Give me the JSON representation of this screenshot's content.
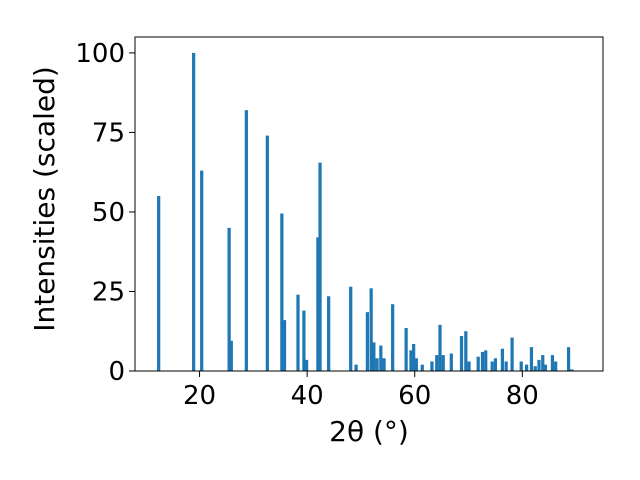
{
  "chart_data": {
    "type": "bar",
    "title": "",
    "xlabel": "2θ (°)",
    "ylabel": "Intensities (scaled)",
    "xlim": [
      8,
      95
    ],
    "ylim": [
      0,
      105
    ],
    "xticks": [
      20,
      40,
      60,
      80
    ],
    "yticks": [
      0,
      25,
      50,
      75,
      100
    ],
    "grid": false,
    "legend": "none",
    "bar_width": 0.6,
    "color": "#1f77b4",
    "x": [
      12.4,
      18.9,
      20.4,
      25.5,
      25.9,
      28.7,
      32.6,
      35.3,
      35.8,
      38.3,
      39.4,
      39.9,
      42.0,
      42.4,
      44.0,
      48.1,
      49.1,
      51.2,
      51.9,
      52.4,
      53.0,
      53.7,
      54.3,
      55.9,
      58.4,
      59.3,
      59.8,
      60.3,
      61.4,
      63.2,
      64.1,
      64.7,
      65.3,
      66.8,
      68.7,
      69.5,
      70.1,
      71.8,
      72.6,
      73.2,
      74.4,
      75.0,
      76.3,
      77.0,
      78.1,
      79.8,
      80.8,
      81.7,
      82.4,
      83.1,
      83.8,
      84.3,
      85.6,
      86.2,
      88.6,
      89.2
    ],
    "values": [
      55,
      100,
      63,
      45,
      9.5,
      82,
      74,
      49.5,
      16,
      24,
      19,
      3.5,
      42,
      65.5,
      23.5,
      26.5,
      2,
      18.5,
      26,
      9,
      4,
      8,
      4,
      21,
      13.5,
      6.5,
      8.5,
      4,
      2,
      3,
      5,
      14.5,
      5,
      5.5,
      11,
      12.5,
      3,
      4.5,
      6,
      6.5,
      3,
      4,
      7,
      3,
      10.5,
      3,
      2,
      7.5,
      1.5,
      3.5,
      5,
      2,
      5,
      3,
      7.5,
      0.5
    ]
  }
}
